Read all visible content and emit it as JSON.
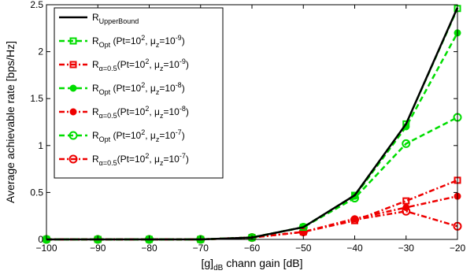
{
  "chart_data": {
    "type": "line",
    "title": "",
    "xlabel": {
      "main": "[g]",
      "sub": "dB",
      "rest": " chann gain [dB]"
    },
    "ylabel": "Average achievable rate [bps/Hz]",
    "xlim": [
      -100,
      -20
    ],
    "ylim": [
      0,
      2.5
    ],
    "xticks": [
      "-100",
      "-90",
      "-80",
      "-70",
      "-60",
      "-50",
      "-40",
      "-30",
      "-20"
    ],
    "yticks": [
      "0",
      "0.5",
      "1",
      "1.5",
      "2",
      "2.5"
    ],
    "legend_position": "top-left",
    "x": [
      -100,
      -90,
      -80,
      -70,
      -60,
      -50,
      -40,
      -30,
      -20
    ],
    "series": [
      {
        "legend": [
          {
            "t": "R",
            "s": "base"
          },
          {
            "t": "UpperBound",
            "s": "sub"
          }
        ],
        "color": "#000000",
        "dash": "solid",
        "marker": "none",
        "values": [
          0,
          0,
          0,
          0,
          0.02,
          0.13,
          0.47,
          1.23,
          2.47
        ]
      },
      {
        "legend": [
          {
            "t": "R",
            "s": "base"
          },
          {
            "t": "Opt",
            "s": "sub"
          },
          {
            "t": " (Pt=10",
            "s": "base"
          },
          {
            "t": "2",
            "s": "sup"
          },
          {
            "t": ", μ",
            "s": "base"
          },
          {
            "t": "z",
            "s": "sub"
          },
          {
            "t": "=10",
            "s": "base"
          },
          {
            "t": "-9",
            "s": "sup"
          },
          {
            "t": ")",
            "s": "base"
          }
        ],
        "color": "#00dd00",
        "dash": "dashed",
        "marker": "square",
        "values": [
          0,
          0,
          0,
          0,
          0.02,
          0.13,
          0.47,
          1.23,
          2.46
        ]
      },
      {
        "legend": [
          {
            "t": "R",
            "s": "base"
          },
          {
            "t": "α=0.5",
            "s": "sub"
          },
          {
            "t": "(Pt=10",
            "s": "base"
          },
          {
            "t": "2",
            "s": "sup"
          },
          {
            "t": ", μ",
            "s": "base"
          },
          {
            "t": "z",
            "s": "sub"
          },
          {
            "t": "=10",
            "s": "base"
          },
          {
            "t": "-9",
            "s": "sup"
          },
          {
            "t": ")",
            "s": "base"
          }
        ],
        "color": "#ee0000",
        "dash": "dashdot",
        "marker": "square",
        "values": [
          0,
          0,
          0,
          0,
          0.02,
          0.08,
          0.2,
          0.41,
          0.63
        ]
      },
      {
        "legend": [
          {
            "t": "R",
            "s": "base"
          },
          {
            "t": "Opt",
            "s": "sub"
          },
          {
            "t": " (Pt=10",
            "s": "base"
          },
          {
            "t": "2",
            "s": "sup"
          },
          {
            "t": ", μ",
            "s": "base"
          },
          {
            "t": "z",
            "s": "sub"
          },
          {
            "t": "=10",
            "s": "base"
          },
          {
            "t": "-8",
            "s": "sup"
          },
          {
            "t": ")",
            "s": "base"
          }
        ],
        "color": "#00dd00",
        "dash": "dashed",
        "marker": "dot",
        "values": [
          0,
          0,
          0,
          0,
          0.02,
          0.13,
          0.46,
          1.2,
          2.2
        ]
      },
      {
        "legend": [
          {
            "t": "R",
            "s": "base"
          },
          {
            "t": "α=0.5",
            "s": "sub"
          },
          {
            "t": "(Pt=10",
            "s": "base"
          },
          {
            "t": "2",
            "s": "sup"
          },
          {
            "t": ", μ",
            "s": "base"
          },
          {
            "t": "z",
            "s": "sub"
          },
          {
            "t": "=10",
            "s": "base"
          },
          {
            "t": "-8",
            "s": "sup"
          },
          {
            "t": ")",
            "s": "base"
          }
        ],
        "color": "#ee0000",
        "dash": "dashdot",
        "marker": "dot",
        "values": [
          0,
          0,
          0,
          0,
          0.02,
          0.08,
          0.22,
          0.34,
          0.46
        ]
      },
      {
        "legend": [
          {
            "t": "R",
            "s": "base"
          },
          {
            "t": "Opt",
            "s": "sub"
          },
          {
            "t": " (Pt=10",
            "s": "base"
          },
          {
            "t": "2",
            "s": "sup"
          },
          {
            "t": ", μ",
            "s": "base"
          },
          {
            "t": "z",
            "s": "sub"
          },
          {
            "t": "=10",
            "s": "base"
          },
          {
            "t": "-7",
            "s": "sup"
          },
          {
            "t": ")",
            "s": "base"
          }
        ],
        "color": "#00dd00",
        "dash": "dashed",
        "marker": "circle",
        "values": [
          0,
          0,
          0,
          0,
          0.02,
          0.13,
          0.44,
          1.02,
          1.3
        ]
      },
      {
        "legend": [
          {
            "t": "R",
            "s": "base"
          },
          {
            "t": "α=0.5",
            "s": "sub"
          },
          {
            "t": "(Pt=10",
            "s": "base"
          },
          {
            "t": "2",
            "s": "sup"
          },
          {
            "t": ", μ",
            "s": "base"
          },
          {
            "t": "z",
            "s": "sub"
          },
          {
            "t": "=10",
            "s": "base"
          },
          {
            "t": "-7",
            "s": "sup"
          },
          {
            "t": ")",
            "s": "base"
          }
        ],
        "color": "#ee0000",
        "dash": "dashdot",
        "marker": "circle",
        "values": [
          0,
          0,
          0,
          0,
          0.02,
          0.08,
          0.21,
          0.3,
          0.14
        ]
      }
    ]
  }
}
